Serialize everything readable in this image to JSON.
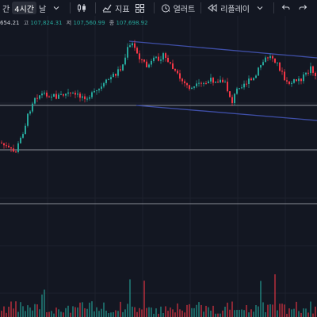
{
  "toolbar": {
    "interval_prev_label": "간",
    "interval_active_label": "4시간",
    "interval_next_label": "날",
    "indicators_label": "지표",
    "alerts_label": "얼러트",
    "replay_label": "리플레이"
  },
  "ohlc": {
    "open_partial": "654.21",
    "high_label": "고",
    "high_value": "107,824.31",
    "low_label": "저",
    "low_value": "107,560.99",
    "close_label": "종",
    "close_value": "107,698.92"
  },
  "colors": {
    "background": "#131722",
    "up": "#26a69a",
    "down": "#f23645",
    "trendline": "#3f4fa8",
    "hline": "#8a8d96"
  }
}
